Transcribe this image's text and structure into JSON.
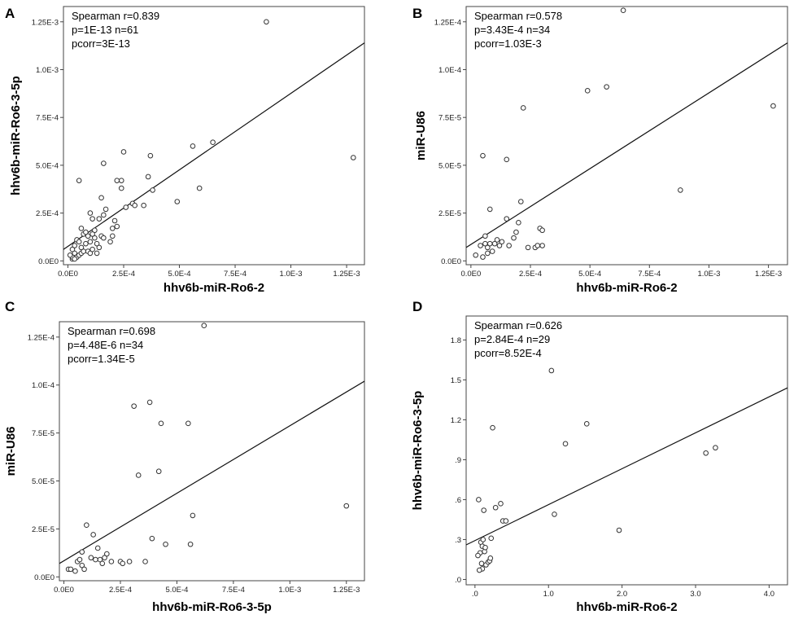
{
  "chart_data": [
    {
      "type": "scatter",
      "panel": "A",
      "xlabel": "hhv6b-miR-Ro6-2",
      "ylabel": "hhv6b-miR-Ro6-3-5p",
      "xlim": [
        -2e-05,
        0.00133
      ],
      "ylim": [
        -2e-05,
        0.00133
      ],
      "xticks": [
        0,
        0.00025,
        0.0005,
        0.00075,
        0.001,
        0.00125
      ],
      "xtick_labels": [
        "0.0E0",
        "2.5E-4",
        "5.0E-4",
        "7.5E-4",
        "1.0E-3",
        "1.25E-3"
      ],
      "yticks": [
        0,
        0.00025,
        0.0005,
        0.00075,
        0.001,
        0.00125
      ],
      "ytick_labels": [
        "0.0E0",
        "2.5E-4",
        "5.0E-4",
        "7.5E-4",
        "1.0E-3",
        "1.25E-3"
      ],
      "stats": [
        "Spearman  r=0.839",
        "p=1E-13  n=61",
        "pcorr=3E-13"
      ],
      "fit_line": [
        [
          -2e-05,
          6e-05
        ],
        [
          0.00133,
          0.00114
        ]
      ],
      "points": [
        [
          2e-05,
          1e-05
        ],
        [
          2e-05,
          2e-05
        ],
        [
          3e-05,
          4e-05
        ],
        [
          1e-05,
          3e-05
        ],
        [
          4e-05,
          2e-05
        ],
        [
          3e-05,
          1e-05
        ],
        [
          5e-05,
          3e-05
        ],
        [
          6e-05,
          4e-05
        ],
        [
          7e-05,
          5e-05
        ],
        [
          4e-05,
          0.00011
        ],
        [
          9e-05,
          5e-05
        ],
        [
          6e-05,
          7e-05
        ],
        [
          8e-05,
          9e-05
        ],
        [
          0.0001,
          4e-05
        ],
        [
          0.00011,
          6e-05
        ],
        [
          0.0001,
          0.0001
        ],
        [
          0.00012,
          0.00012
        ],
        [
          0.00013,
          9e-05
        ],
        [
          0.00014,
          7e-05
        ],
        [
          7e-05,
          0.00014
        ],
        [
          9e-05,
          0.00013
        ],
        [
          0.00012,
          0.00016
        ],
        [
          0.00015,
          0.00013
        ],
        [
          6e-05,
          0.00017
        ],
        [
          8e-05,
          0.00015
        ],
        [
          0.00011,
          0.00014
        ],
        [
          0.00016,
          0.00012
        ],
        [
          0.00014,
          0.00022
        ],
        [
          0.00016,
          0.00024
        ],
        [
          0.00015,
          0.00033
        ],
        [
          0.0001,
          0.00025
        ],
        [
          5e-05,
          0.00042
        ],
        [
          0.0002,
          0.00013
        ],
        [
          0.0002,
          0.00017
        ],
        [
          0.00021,
          0.00021
        ],
        [
          0.00022,
          0.00018
        ],
        [
          0.00024,
          0.00038
        ],
        [
          0.00024,
          0.00042
        ],
        [
          0.00025,
          0.00057
        ],
        [
          0.00016,
          0.00051
        ],
        [
          0.00029,
          0.0003
        ],
        [
          0.0003,
          0.00029
        ],
        [
          0.00034,
          0.00029
        ],
        [
          0.00036,
          0.00044
        ],
        [
          0.00037,
          0.00055
        ],
        [
          0.00038,
          0.00037
        ],
        [
          0.00049,
          0.00031
        ],
        [
          0.00056,
          0.0006
        ],
        [
          0.00059,
          0.00038
        ],
        [
          0.00065,
          0.00062
        ],
        [
          0.00089,
          0.00125
        ],
        [
          0.00128,
          0.00054
        ],
        [
          3e-05,
          8e-05
        ],
        [
          0.00013,
          4e-05
        ],
        [
          0.00019,
          0.0001
        ],
        [
          0.00011,
          0.00022
        ],
        [
          2e-05,
          6e-05
        ],
        [
          5e-05,
          0.0001
        ],
        [
          0.00022,
          0.00042
        ],
        [
          0.00026,
          0.00028
        ],
        [
          0.00017,
          0.00027
        ]
      ]
    },
    {
      "type": "scatter",
      "panel": "B",
      "xlabel": "hhv6b-miR-Ro6-2",
      "ylabel": "miR-U86",
      "xlim": [
        -2e-05,
        0.00133
      ],
      "ylim": [
        -2e-06,
        0.000133
      ],
      "xticks": [
        0,
        0.00025,
        0.0005,
        0.00075,
        0.001,
        0.00125
      ],
      "xtick_labels": [
        "0.0E0",
        "2.5E-4",
        "5.0E-4",
        "7.5E-4",
        "1.0E-3",
        "1.25E-3"
      ],
      "yticks": [
        0,
        2.5e-05,
        5e-05,
        7.5e-05,
        0.0001,
        0.000125
      ],
      "ytick_labels": [
        "0.0E0",
        "2.5E-5",
        "5.0E-5",
        "7.5E-5",
        "1.0E-4",
        "1.25E-4"
      ],
      "stats": [
        "Spearman  r=0.578",
        "p=3.43E-4  n=34",
        "pcorr=1.03E-3"
      ],
      "fit_line": [
        [
          -2e-05,
          7e-06
        ],
        [
          0.00133,
          0.000114
        ]
      ],
      "points": [
        [
          2e-05,
          3e-06
        ],
        [
          5e-05,
          2e-06
        ],
        [
          4e-05,
          8e-06
        ],
        [
          6e-05,
          9e-06
        ],
        [
          7e-05,
          7e-06
        ],
        [
          8e-05,
          9e-06
        ],
        [
          6e-05,
          1.3e-05
        ],
        [
          0.0001,
          9e-06
        ],
        [
          9e-05,
          5e-06
        ],
        [
          8e-05,
          2.7e-05
        ],
        [
          5e-05,
          5.5e-05
        ],
        [
          0.00012,
          8e-06
        ],
        [
          0.00015,
          2.2e-05
        ],
        [
          0.00015,
          5.3e-05
        ],
        [
          0.00016,
          8e-06
        ],
        [
          0.00018,
          1.2e-05
        ],
        [
          0.00019,
          1.5e-05
        ],
        [
          0.0002,
          2e-05
        ],
        [
          0.00021,
          3.1e-05
        ],
        [
          0.00022,
          8e-05
        ],
        [
          0.00024,
          7e-06
        ],
        [
          0.00027,
          7e-06
        ],
        [
          0.00028,
          8e-06
        ],
        [
          0.00029,
          1.7e-05
        ],
        [
          0.0003,
          1.6e-05
        ],
        [
          0.0003,
          8e-06
        ],
        [
          0.00049,
          8.9e-05
        ],
        [
          0.00057,
          9.1e-05
        ],
        [
          0.00064,
          0.000131
        ],
        [
          0.00088,
          3.7e-05
        ],
        [
          0.00127,
          8.1e-05
        ],
        [
          0.00011,
          1.1e-05
        ],
        [
          7e-05,
          4e-06
        ],
        [
          0.00013,
          1e-05
        ]
      ]
    },
    {
      "type": "scatter",
      "panel": "C",
      "xlabel": "hhv6b-miR-Ro6-3-5p",
      "ylabel": "miR-U86",
      "xlim": [
        -2e-05,
        0.00133
      ],
      "ylim": [
        -2e-06,
        0.000133
      ],
      "xticks": [
        0,
        0.00025,
        0.0005,
        0.00075,
        0.001,
        0.00125
      ],
      "xtick_labels": [
        "0.0E0",
        "2.5E-4",
        "5.0E-4",
        "7.5E-4",
        "1.0E-3",
        "1.25E-3"
      ],
      "yticks": [
        0,
        2.5e-05,
        5e-05,
        7.5e-05,
        0.0001,
        0.000125
      ],
      "ytick_labels": [
        "0.0E0",
        "2.5E-5",
        "5.0E-5",
        "7.5E-5",
        "1.0E-4",
        "1.25E-4"
      ],
      "stats": [
        "Spearman  r=0.698",
        "p=4.48E-6  n=34",
        "pcorr=1.34E-5"
      ],
      "fit_line": [
        [
          -2e-05,
          7e-06
        ],
        [
          0.00133,
          0.000102
        ]
      ],
      "points": [
        [
          2e-05,
          4e-06
        ],
        [
          3e-05,
          4e-06
        ],
        [
          5e-05,
          3e-06
        ],
        [
          6e-05,
          8e-06
        ],
        [
          7e-05,
          9e-06
        ],
        [
          8e-05,
          6e-06
        ],
        [
          9e-05,
          4e-06
        ],
        [
          8e-05,
          1.3e-05
        ],
        [
          0.0001,
          2.7e-05
        ],
        [
          0.00012,
          1e-05
        ],
        [
          0.00013,
          2.2e-05
        ],
        [
          0.00014,
          9e-06
        ],
        [
          0.00015,
          1.5e-05
        ],
        [
          0.00016,
          9e-06
        ],
        [
          0.00017,
          7e-06
        ],
        [
          0.00018,
          1e-05
        ],
        [
          0.00019,
          1.2e-05
        ],
        [
          0.00021,
          8e-06
        ],
        [
          0.00025,
          8e-06
        ],
        [
          0.00026,
          7e-06
        ],
        [
          0.00029,
          8e-06
        ],
        [
          0.00031,
          8.9e-05
        ],
        [
          0.00033,
          5.3e-05
        ],
        [
          0.00036,
          8e-06
        ],
        [
          0.00038,
          9.1e-05
        ],
        [
          0.00039,
          2e-05
        ],
        [
          0.00042,
          5.5e-05
        ],
        [
          0.00043,
          8e-05
        ],
        [
          0.00045,
          1.7e-05
        ],
        [
          0.00055,
          8e-05
        ],
        [
          0.00056,
          1.7e-05
        ],
        [
          0.00057,
          3.2e-05
        ],
        [
          0.00062,
          0.000131
        ],
        [
          0.00125,
          3.7e-05
        ]
      ]
    },
    {
      "type": "scatter",
      "panel": "D",
      "xlabel": "hhv6b-miR-Ro6-2",
      "ylabel": "hhv6b-miR-Ro6-3-5p",
      "xlim": [
        -0.12,
        4.25
      ],
      "ylim": [
        -0.04,
        1.98
      ],
      "xticks": [
        0,
        1,
        2,
        3,
        4
      ],
      "xtick_labels": [
        ".0",
        "1.0",
        "2.0",
        "3.0",
        "4.0"
      ],
      "yticks": [
        0,
        0.3,
        0.6,
        0.9,
        1.2,
        1.5,
        1.8
      ],
      "ytick_labels": [
        ".0",
        ".3",
        ".6",
        ".9",
        "1.2",
        "1.5",
        "1.8"
      ],
      "stats": [
        "Spearman  r=0.626",
        "p=2.84E-4  n=29",
        "pcorr=8.52E-4"
      ],
      "fit_line": [
        [
          -0.12,
          0.26
        ],
        [
          4.25,
          1.44
        ]
      ],
      "points": [
        [
          0.05,
          0.6
        ],
        [
          0.08,
          0.28
        ],
        [
          0.1,
          0.25
        ],
        [
          0.12,
          0.52
        ],
        [
          0.07,
          0.2
        ],
        [
          0.09,
          0.12
        ],
        [
          0.1,
          0.08
        ],
        [
          0.06,
          0.07
        ],
        [
          0.13,
          0.21
        ],
        [
          0.14,
          0.24
        ],
        [
          0.15,
          0.11
        ],
        [
          0.18,
          0.13
        ],
        [
          0.2,
          0.14
        ],
        [
          0.21,
          0.16
        ],
        [
          0.22,
          0.31
        ],
        [
          0.24,
          1.14
        ],
        [
          0.28,
          0.54
        ],
        [
          0.35,
          0.57
        ],
        [
          0.38,
          0.44
        ],
        [
          0.42,
          0.44
        ],
        [
          1.04,
          1.57
        ],
        [
          1.08,
          0.49
        ],
        [
          1.23,
          1.02
        ],
        [
          1.52,
          1.17
        ],
        [
          1.96,
          0.37
        ],
        [
          3.14,
          0.95
        ],
        [
          3.27,
          0.99
        ],
        [
          0.04,
          0.18
        ],
        [
          0.11,
          0.3
        ]
      ]
    }
  ]
}
